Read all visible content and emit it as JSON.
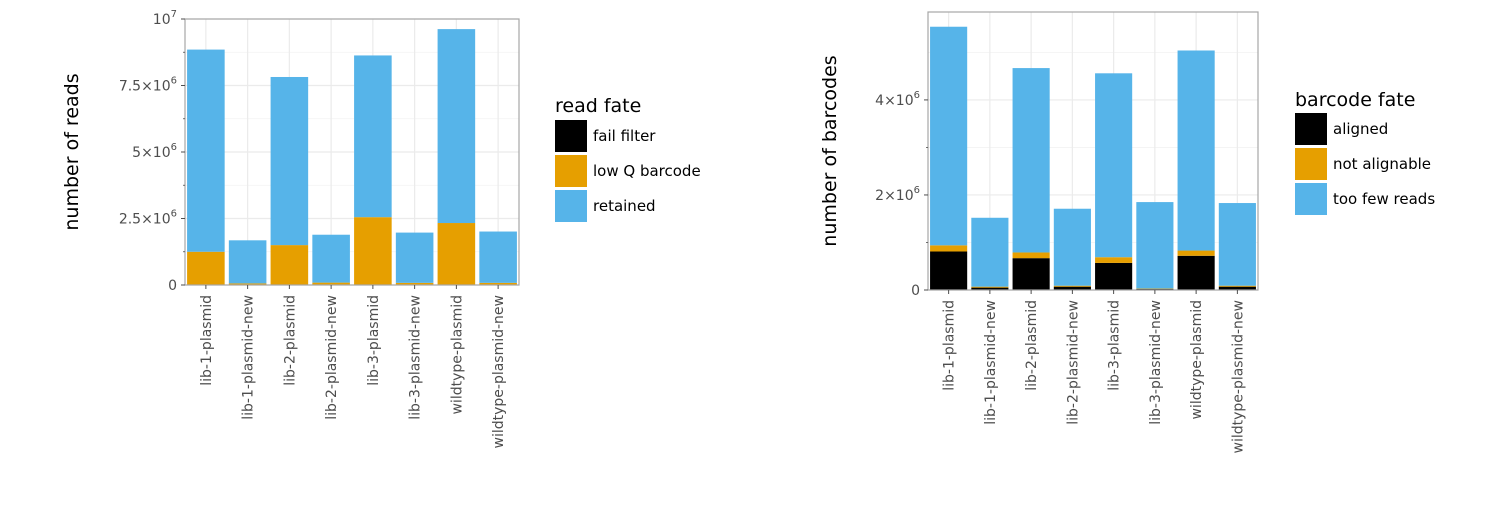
{
  "chart_data": [
    {
      "type": "bar",
      "stacked": true,
      "categories": [
        "lib-1-plasmid",
        "lib-1-plasmid-new",
        "lib-2-plasmid",
        "lib-2-plasmid-new",
        "lib-3-plasmid",
        "lib-3-plasmid-new",
        "wildtype-plasmid",
        "wildtype-plasmid-new"
      ],
      "series": [
        {
          "name": "fail filter",
          "color": "#000000",
          "values": [
            0,
            0,
            0,
            0,
            0,
            0,
            0,
            0
          ]
        },
        {
          "name": "low Q barcode",
          "color": "#E69F00",
          "values": [
            1250000,
            60000,
            1500000,
            90000,
            2550000,
            80000,
            2330000,
            80000
          ]
        },
        {
          "name": "retained",
          "color": "#56B4E9",
          "values": [
            7600000,
            1620000,
            6320000,
            1800000,
            6080000,
            1890000,
            7290000,
            1930000
          ]
        }
      ],
      "ylabel": "number of reads",
      "ylim": [
        0,
        10000000
      ],
      "yticks": [
        {
          "value": 0,
          "mantissa": "0",
          "exp": ""
        },
        {
          "value": 2500000,
          "mantissa": "2.5×10",
          "exp": "6"
        },
        {
          "value": 5000000,
          "mantissa": "5×10",
          "exp": "6"
        },
        {
          "value": 7500000,
          "mantissa": "7.5×10",
          "exp": "6"
        },
        {
          "value": 10000000,
          "mantissa": "10",
          "exp": "7"
        }
      ],
      "legend": {
        "title": "read fate",
        "position": "right"
      },
      "grid": true
    },
    {
      "type": "bar",
      "stacked": true,
      "categories": [
        "lib-1-plasmid",
        "lib-1-plasmid-new",
        "lib-2-plasmid",
        "lib-2-plasmid-new",
        "lib-3-plasmid",
        "lib-3-plasmid-new",
        "wildtype-plasmid",
        "wildtype-plasmid-new"
      ],
      "series": [
        {
          "name": "aligned",
          "color": "#000000",
          "values": [
            810000,
            50000,
            670000,
            70000,
            570000,
            20000,
            720000,
            70000
          ]
        },
        {
          "name": "not alignable",
          "color": "#E69F00",
          "values": [
            130000,
            20000,
            120000,
            20000,
            120000,
            10000,
            110000,
            20000
          ]
        },
        {
          "name": "too few reads",
          "color": "#56B4E9",
          "values": [
            4600000,
            1450000,
            3880000,
            1620000,
            3870000,
            1820000,
            4210000,
            1740000
          ]
        }
      ],
      "ylabel": "number of barcodes",
      "ylim": [
        0,
        5850000
      ],
      "yticks": [
        {
          "value": 0,
          "mantissa": "0",
          "exp": ""
        },
        {
          "value": 2000000,
          "mantissa": "2×10",
          "exp": "6"
        },
        {
          "value": 4000000,
          "mantissa": "4×10",
          "exp": "6"
        }
      ],
      "legend": {
        "title": "barcode fate",
        "position": "right"
      },
      "grid": true
    }
  ]
}
